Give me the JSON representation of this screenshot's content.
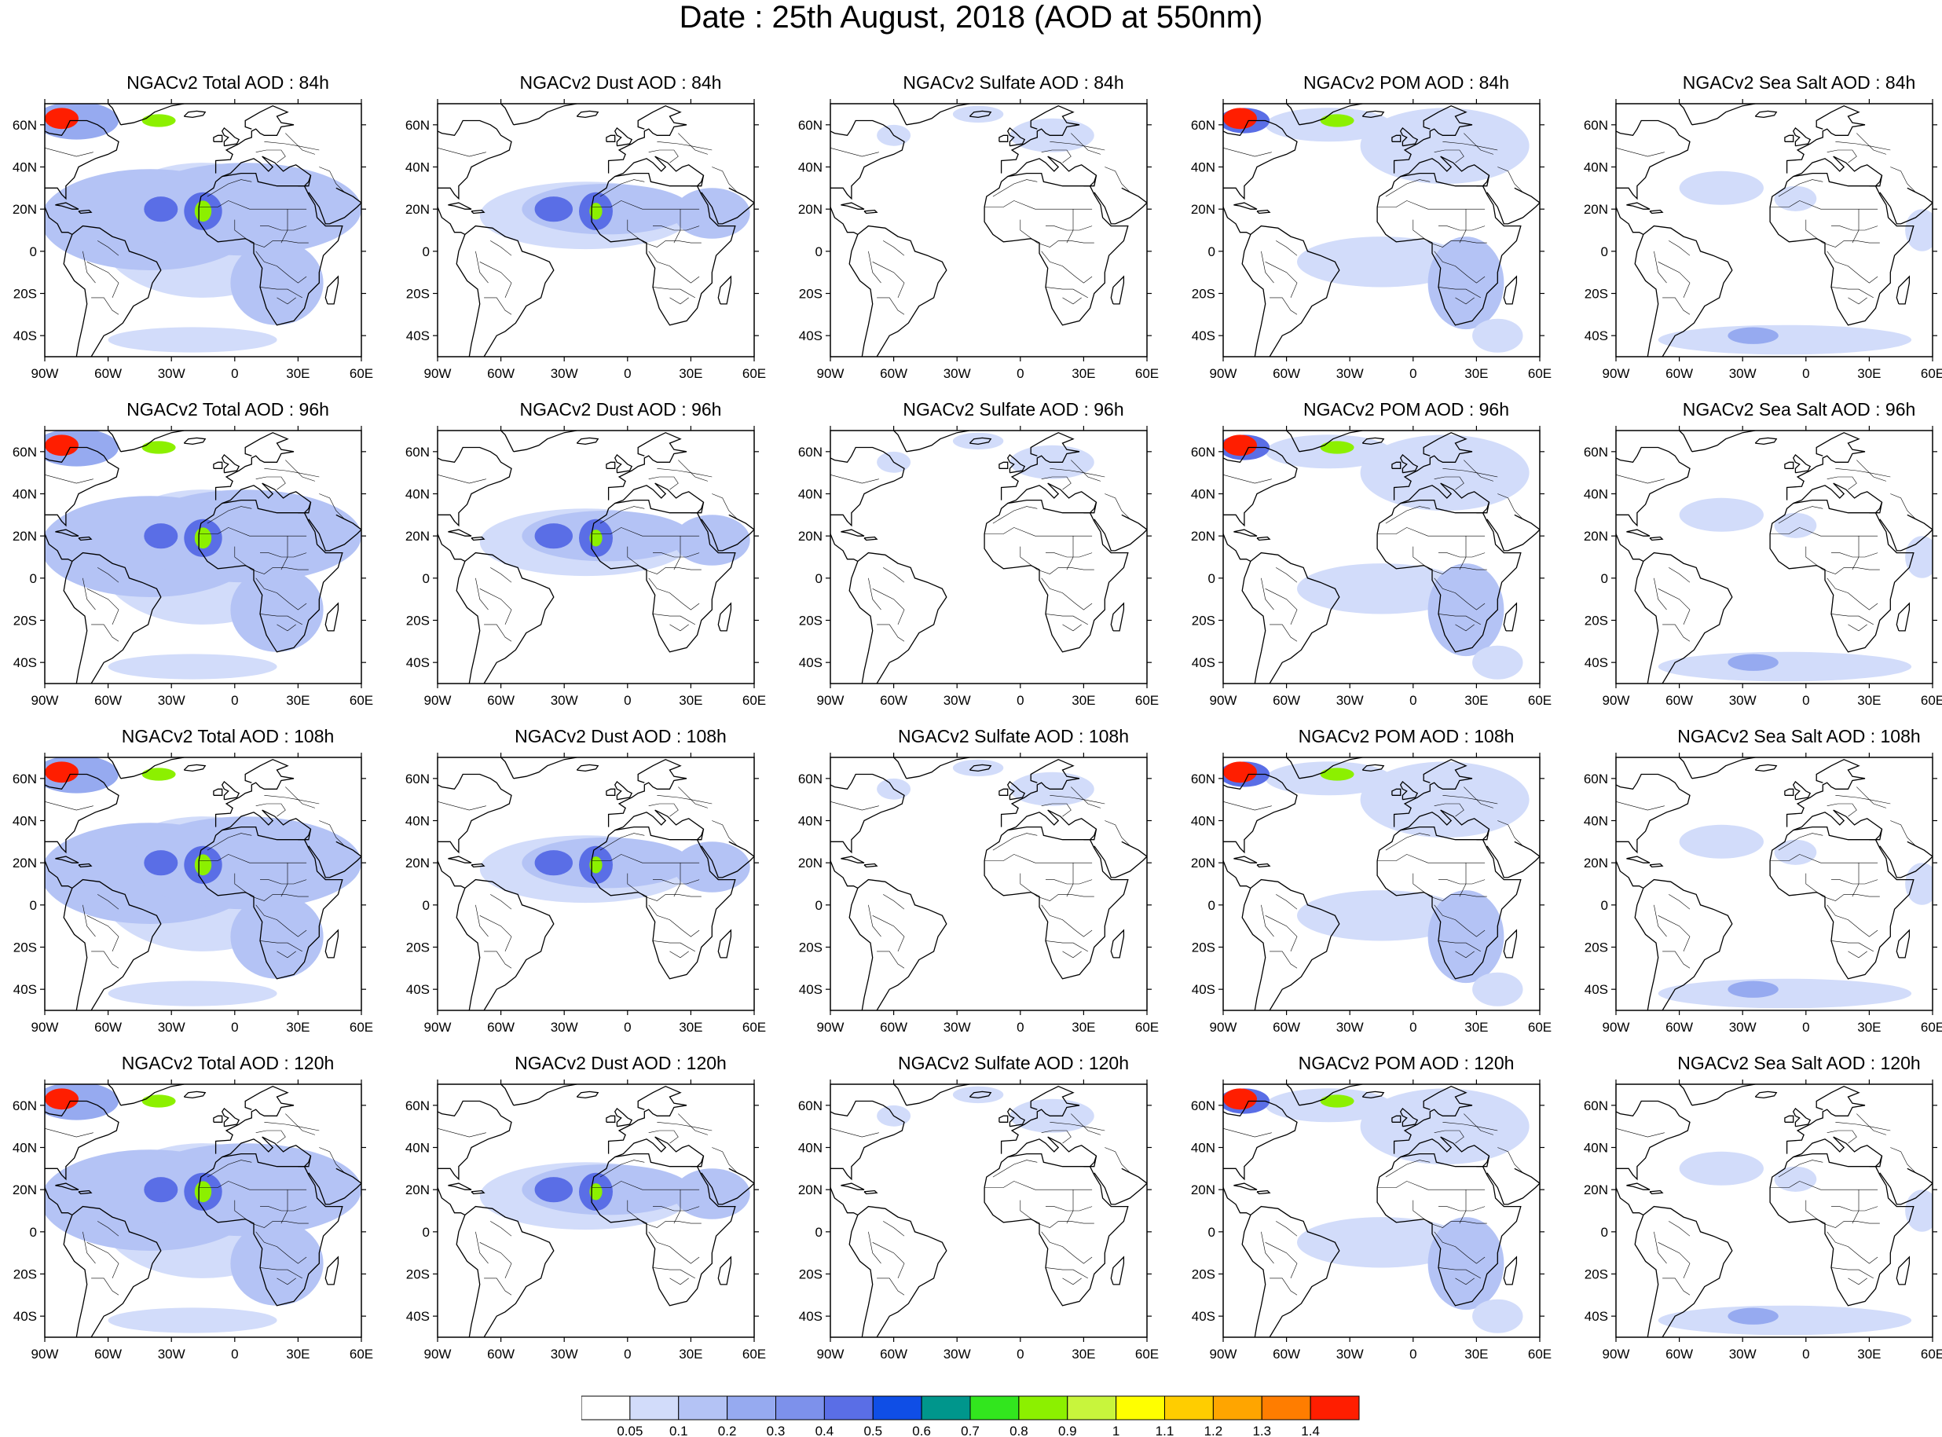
{
  "title": "Date : 25th August, 2018 (AOD at 550nm)",
  "lon_ticks": [
    "90W",
    "60W",
    "30W",
    "0",
    "30E",
    "60E"
  ],
  "lat_ticks": [
    "60N",
    "40N",
    "20N",
    "0",
    "20S",
    "40S"
  ],
  "panels": [
    {
      "title": "NGACv2 Total AOD : 84h",
      "species": "total",
      "hour": 84
    },
    {
      "title": "NGACv2 Dust AOD : 84h",
      "species": "dust",
      "hour": 84
    },
    {
      "title": "NGACv2 Sulfate AOD : 84h",
      "species": "sulfate",
      "hour": 84
    },
    {
      "title": "NGACv2 POM AOD : 84h",
      "species": "pom",
      "hour": 84
    },
    {
      "title": "NGACv2 Sea Salt AOD : 84h",
      "species": "seasalt",
      "hour": 84
    },
    {
      "title": "NGACv2 Total AOD : 96h",
      "species": "total",
      "hour": 96
    },
    {
      "title": "NGACv2 Dust AOD : 96h",
      "species": "dust",
      "hour": 96
    },
    {
      "title": "NGACv2 Sulfate AOD : 96h",
      "species": "sulfate",
      "hour": 96
    },
    {
      "title": "NGACv2 POM AOD : 96h",
      "species": "pom",
      "hour": 96
    },
    {
      "title": "NGACv2 Sea Salt AOD : 96h",
      "species": "seasalt",
      "hour": 96
    },
    {
      "title": "NGACv2 Total AOD : 108h",
      "species": "total",
      "hour": 108
    },
    {
      "title": "NGACv2 Dust AOD : 108h",
      "species": "dust",
      "hour": 108
    },
    {
      "title": "NGACv2 Sulfate AOD : 108h",
      "species": "sulfate",
      "hour": 108
    },
    {
      "title": "NGACv2 POM AOD : 108h",
      "species": "pom",
      "hour": 108
    },
    {
      "title": "NGACv2 Sea Salt AOD : 108h",
      "species": "seasalt",
      "hour": 108
    },
    {
      "title": "NGACv2 Total AOD : 120h",
      "species": "total",
      "hour": 120
    },
    {
      "title": "NGACv2 Dust AOD : 120h",
      "species": "dust",
      "hour": 120
    },
    {
      "title": "NGACv2 Sulfate AOD : 120h",
      "species": "sulfate",
      "hour": 120
    },
    {
      "title": "NGACv2 POM AOD : 120h",
      "species": "pom",
      "hour": 120
    },
    {
      "title": "NGACv2 Sea Salt  AOD : 120h",
      "species": "seasalt",
      "hour": 120
    }
  ],
  "colorbar": {
    "labels": [
      "0.05",
      "0.1",
      "0.2",
      "0.3",
      "0.4",
      "0.5",
      "0.6",
      "0.7",
      "0.8",
      "0.9",
      "1",
      "1.1",
      "1.2",
      "1.3",
      "1.4"
    ],
    "colors": [
      "#ffffff",
      "#d2dcfa",
      "#b4c3f5",
      "#96aaf0",
      "#7d91eb",
      "#5a6ee6",
      "#0f4ee6",
      "#00968c",
      "#32e61e",
      "#8cf000",
      "#c8f53c",
      "#ffff00",
      "#ffcd00",
      "#ffa500",
      "#ff7d00",
      "#ff1e00"
    ]
  },
  "map_extent": {
    "lon": [
      -90,
      60
    ],
    "lat": [
      -50,
      70
    ]
  }
}
